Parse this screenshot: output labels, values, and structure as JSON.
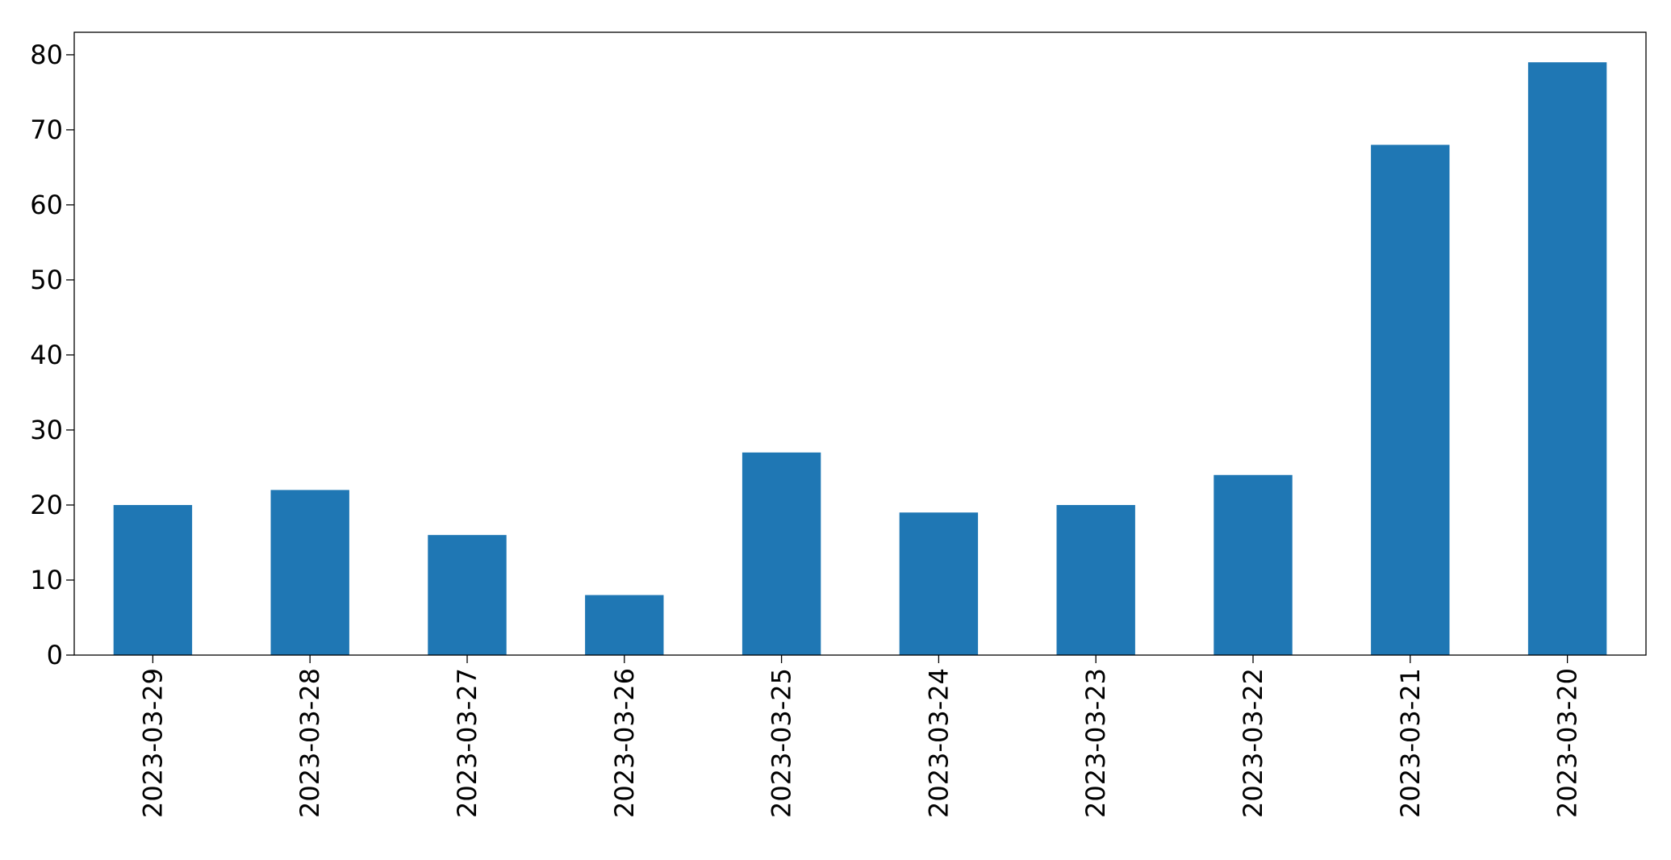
{
  "chart_data": {
    "type": "bar",
    "title": "",
    "xlabel": "",
    "ylabel": "",
    "categories": [
      "2023-03-29",
      "2023-03-28",
      "2023-03-27",
      "2023-03-26",
      "2023-03-25",
      "2023-03-24",
      "2023-03-23",
      "2023-03-22",
      "2023-03-21",
      "2023-03-20"
    ],
    "values": [
      20,
      22,
      16,
      8,
      27,
      19,
      20,
      24,
      68,
      79
    ],
    "ylim": [
      0,
      83
    ],
    "yticks": [
      0,
      10,
      20,
      30,
      40,
      50,
      60,
      70,
      80
    ],
    "grid": false,
    "legend": "none",
    "bar_color": "#1f77b4"
  }
}
